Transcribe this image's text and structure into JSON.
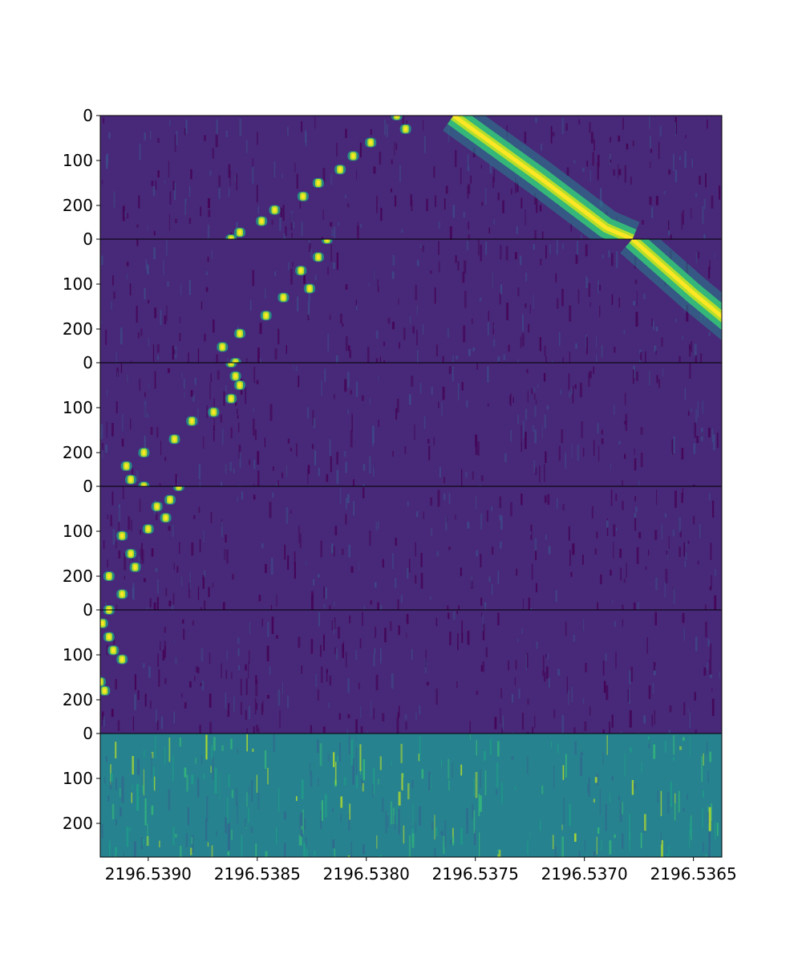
{
  "chart_data": {
    "type": "heatmap",
    "title": "",
    "xlabel": "",
    "ylabel": "",
    "colormap": "viridis",
    "xlim": [
      2196.53922,
      2196.53637
    ],
    "x_reversed": true,
    "x_ticks": [
      2196.539,
      2196.5385,
      2196.538,
      2196.5375,
      2196.537,
      2196.5365
    ],
    "x_tick_labels": [
      "2196.5390",
      "2196.5385",
      "2196.5380",
      "2196.5375",
      "2196.5370",
      "2196.5365"
    ],
    "panel_y_range": [
      0,
      275
    ],
    "y_ticks": [
      0,
      100,
      200
    ],
    "y_tick_labels": [
      "0",
      "100",
      "200"
    ],
    "panels": [
      {
        "label": "panel-1",
        "background": "noise-dark",
        "tracks": [
          {
            "name": "stepped-track",
            "points": [
              [
                2196.53786,
                0
              ],
              [
                2196.53782,
                30
              ],
              [
                2196.53798,
                60
              ],
              [
                2196.53806,
                90
              ],
              [
                2196.53812,
                120
              ],
              [
                2196.53822,
                150
              ],
              [
                2196.53829,
                180
              ],
              [
                2196.53842,
                210
              ],
              [
                2196.53848,
                235
              ],
              [
                2196.53858,
                260
              ],
              [
                2196.53862,
                275
              ]
            ]
          },
          {
            "name": "broad-drift-track",
            "points": [
              [
                2196.5376,
                0
              ],
              [
                2196.5372,
                140
              ],
              [
                2196.5369,
                250
              ],
              [
                2196.53678,
                275
              ]
            ]
          }
        ]
      },
      {
        "label": "panel-2",
        "background": "noise-dark",
        "tracks": [
          {
            "name": "stepped-track",
            "points": [
              [
                2196.53818,
                0
              ],
              [
                2196.53822,
                40
              ],
              [
                2196.5383,
                70
              ],
              [
                2196.53826,
                110
              ],
              [
                2196.53838,
                130
              ],
              [
                2196.53846,
                170
              ],
              [
                2196.53858,
                210
              ],
              [
                2196.53866,
                240
              ],
              [
                2196.5386,
                275
              ]
            ]
          },
          {
            "name": "broad-drift-track",
            "points": [
              [
                2196.53678,
                0
              ],
              [
                2196.5365,
                120
              ],
              [
                2196.53625,
                220
              ],
              [
                2196.5361,
                275
              ]
            ]
          }
        ]
      },
      {
        "label": "panel-3",
        "background": "noise-dark",
        "tracks": [
          {
            "name": "stepped-track",
            "points": [
              [
                2196.53862,
                0
              ],
              [
                2196.5386,
                30
              ],
              [
                2196.53858,
                50
              ],
              [
                2196.53862,
                80
              ],
              [
                2196.5387,
                110
              ],
              [
                2196.5388,
                130
              ],
              [
                2196.53888,
                170
              ],
              [
                2196.53902,
                200
              ],
              [
                2196.5391,
                230
              ],
              [
                2196.53908,
                260
              ],
              [
                2196.53902,
                275
              ]
            ]
          },
          {
            "name": "broad-drift-track",
            "points": [
              [
                2196.5361,
                0
              ],
              [
                2196.5359,
                60
              ],
              [
                2196.5356,
                120
              ],
              [
                2196.5354,
                160
              ]
            ]
          }
        ]
      },
      {
        "label": "panel-4",
        "background": "noise-dark",
        "tracks": [
          {
            "name": "stepped-track",
            "points": [
              [
                2196.53886,
                0
              ],
              [
                2196.5389,
                30
              ],
              [
                2196.53896,
                45
              ],
              [
                2196.53892,
                70
              ],
              [
                2196.539,
                95
              ],
              [
                2196.53912,
                110
              ],
              [
                2196.53908,
                150
              ],
              [
                2196.53906,
                180
              ],
              [
                2196.53918,
                200
              ],
              [
                2196.53912,
                240
              ],
              [
                2196.53918,
                275
              ]
            ]
          }
        ]
      },
      {
        "label": "panel-5",
        "background": "noise-dark",
        "tracks": [
          {
            "name": "stepped-track",
            "points": [
              [
                2196.53918,
                0
              ],
              [
                2196.53921,
                30
              ],
              [
                2196.53918,
                60
              ],
              [
                2196.53916,
                90
              ],
              [
                2196.53912,
                110
              ],
              [
                2196.5393,
                130
              ],
              [
                2196.53922,
                160
              ],
              [
                2196.5392,
                180
              ],
              [
                2196.53932,
                200
              ],
              [
                2196.53928,
                225
              ]
            ]
          }
        ]
      },
      {
        "label": "panel-6",
        "background": "noise-bright",
        "tracks": []
      }
    ]
  },
  "colors": {
    "viridis": [
      "#440154",
      "#482878",
      "#3e4989",
      "#31688e",
      "#26828e",
      "#1f9e89",
      "#35b779",
      "#6ece58",
      "#b5de2b",
      "#fde725"
    ],
    "frame": "#000000",
    "tick_text": "#000000"
  }
}
